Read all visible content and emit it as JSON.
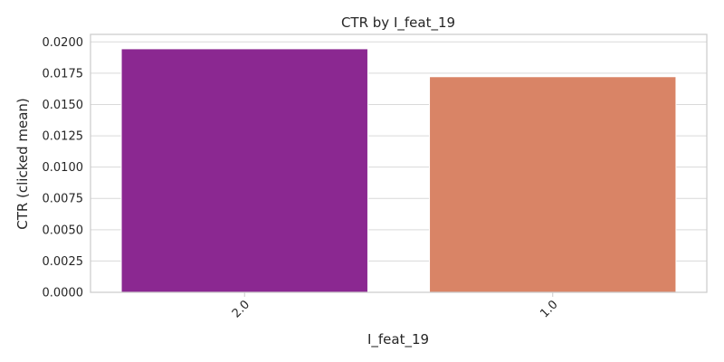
{
  "chart_data": {
    "type": "bar",
    "title": "CTR by I_feat_19",
    "xlabel": "I_feat_19",
    "ylabel": "CTR (clicked mean)",
    "categories": [
      "2.0",
      "1.0"
    ],
    "values": [
      0.01945,
      0.01722
    ],
    "colors": [
      "#8b2891",
      "#d98466"
    ],
    "ylim": [
      0,
      0.0206
    ],
    "yticks": [
      "0.0000",
      "0.0025",
      "0.0050",
      "0.0075",
      "0.0100",
      "0.0125",
      "0.0150",
      "0.0175",
      "0.0200"
    ],
    "grid": "horizontal",
    "legend": "none"
  }
}
